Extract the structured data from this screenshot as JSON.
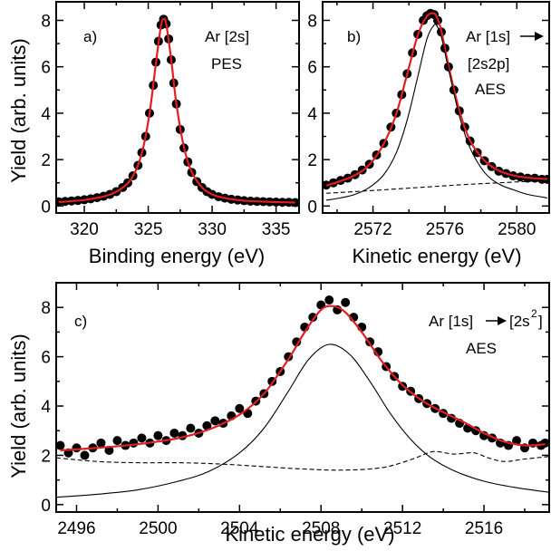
{
  "chart_data": [
    {
      "id": "a",
      "type": "scatter",
      "panel_label": "a)",
      "annotations": [
        "Ar [2s]",
        "PES"
      ],
      "xlabel": "Binding energy (eV)",
      "ylabel": "Yield (arb. units)",
      "xlim": [
        317.8,
        336.8
      ],
      "ylim": [
        -0.3,
        8.8
      ],
      "xticks": [
        320,
        325,
        330,
        335
      ],
      "yticks": [
        0,
        2,
        4,
        6,
        8
      ],
      "grid": false,
      "series": [
        {
          "kind": "points",
          "color": "#000000",
          "x": [
            318.0,
            318.5,
            319.0,
            319.5,
            320.0,
            320.5,
            321.0,
            321.5,
            322.0,
            322.5,
            323.0,
            323.4,
            323.8,
            324.2,
            324.5,
            324.8,
            325.1,
            325.4,
            325.6,
            325.8,
            326.0,
            326.2,
            326.4,
            326.6,
            326.8,
            327.0,
            327.2,
            327.5,
            327.8,
            328.1,
            328.4,
            328.8,
            329.2,
            329.6,
            330.0,
            330.5,
            331.0,
            331.5,
            332.0,
            332.5,
            333.0,
            333.5,
            334.0,
            334.5,
            335.0,
            335.5,
            336.0,
            336.5
          ],
          "y": [
            0.18,
            0.2,
            0.22,
            0.24,
            0.27,
            0.31,
            0.36,
            0.42,
            0.5,
            0.62,
            0.8,
            1.0,
            1.3,
            1.75,
            2.3,
            3.0,
            4.0,
            5.2,
            6.2,
            7.1,
            7.8,
            8.05,
            7.85,
            7.2,
            6.3,
            5.3,
            4.4,
            3.3,
            2.5,
            1.9,
            1.45,
            1.05,
            0.8,
            0.62,
            0.5,
            0.4,
            0.34,
            0.29,
            0.26,
            0.23,
            0.21,
            0.2,
            0.19,
            0.18,
            0.17,
            0.16,
            0.16,
            0.15
          ]
        },
        {
          "kind": "fit",
          "color": "#e02020",
          "x": [
            318.0,
            319.0,
            320.0,
            321.0,
            322.0,
            323.0,
            323.8,
            324.5,
            325.1,
            325.6,
            326.0,
            326.2,
            326.4,
            326.8,
            327.2,
            327.8,
            328.4,
            329.2,
            330.0,
            331.0,
            332.0,
            333.0,
            334.0,
            335.0,
            336.5
          ],
          "y": [
            0.17,
            0.21,
            0.26,
            0.35,
            0.49,
            0.79,
            1.28,
            2.28,
            3.98,
            6.15,
            7.78,
            8.05,
            7.86,
            6.3,
            4.42,
            2.52,
            1.47,
            0.81,
            0.5,
            0.34,
            0.26,
            0.21,
            0.19,
            0.17,
            0.15
          ]
        }
      ]
    },
    {
      "id": "b",
      "type": "scatter",
      "panel_label": "b)",
      "annotations": [
        "Ar [1s]",
        "[2s2p]",
        "AES"
      ],
      "xlabel": "Kinetic energy (eV)",
      "ylabel": "",
      "xlim": [
        2569.2,
        2581.8
      ],
      "ylim": [
        -0.3,
        8.8
      ],
      "xticks": [
        2572,
        2576,
        2580
      ],
      "yticks": [
        0,
        2,
        4,
        6,
        8
      ],
      "grid": false,
      "series": [
        {
          "kind": "points",
          "color": "#000000",
          "x": [
            2569.4,
            2569.8,
            2570.2,
            2570.6,
            2571.0,
            2571.4,
            2571.8,
            2572.2,
            2572.6,
            2573.0,
            2573.3,
            2573.6,
            2573.9,
            2574.2,
            2574.5,
            2574.8,
            2575.0,
            2575.2,
            2575.4,
            2575.6,
            2575.8,
            2576.0,
            2576.2,
            2576.5,
            2576.8,
            2577.1,
            2577.4,
            2577.8,
            2578.2,
            2578.6,
            2579.0,
            2579.4,
            2579.8,
            2580.2,
            2580.6,
            2581.0,
            2581.4,
            2581.7
          ],
          "y": [
            0.9,
            1.0,
            1.1,
            1.2,
            1.35,
            1.55,
            1.8,
            2.2,
            2.7,
            3.4,
            4.0,
            4.8,
            5.7,
            6.6,
            7.4,
            8.0,
            8.2,
            8.3,
            8.25,
            8.0,
            7.5,
            6.8,
            6.0,
            5.0,
            4.1,
            3.4,
            2.8,
            2.3,
            1.95,
            1.7,
            1.5,
            1.4,
            1.3,
            1.25,
            1.2,
            1.2,
            1.15,
            1.15
          ]
        },
        {
          "kind": "fit",
          "color": "#e02020",
          "x": [
            2569.4,
            2570.2,
            2571.0,
            2571.8,
            2572.6,
            2573.3,
            2573.9,
            2574.5,
            2575.0,
            2575.4,
            2575.6,
            2575.8,
            2576.2,
            2576.8,
            2577.4,
            2578.2,
            2579.0,
            2579.8,
            2580.6,
            2581.7
          ],
          "y": [
            0.88,
            1.08,
            1.33,
            1.78,
            2.68,
            3.98,
            5.68,
            7.38,
            8.18,
            8.3,
            8.05,
            7.55,
            6.05,
            4.12,
            2.82,
            1.96,
            1.52,
            1.32,
            1.22,
            1.16
          ]
        },
        {
          "kind": "component-solid",
          "color": "#000000",
          "x": [
            2569.4,
            2570.2,
            2571.0,
            2571.8,
            2572.6,
            2573.3,
            2573.9,
            2574.5,
            2575.0,
            2575.4,
            2575.6,
            2575.8,
            2576.2,
            2576.8,
            2577.4,
            2578.2,
            2579.0,
            2579.8,
            2580.6,
            2581.7
          ],
          "y": [
            0.25,
            0.35,
            0.5,
            0.8,
            1.35,
            2.3,
            3.7,
            5.6,
            7.2,
            7.8,
            7.7,
            7.3,
            5.9,
            3.9,
            2.5,
            1.45,
            0.95,
            0.7,
            0.5,
            0.35
          ]
        },
        {
          "kind": "component-dashed",
          "color": "#000000",
          "x": [
            2569.4,
            2571.0,
            2573.0,
            2575.0,
            2577.0,
            2579.0,
            2581.7
          ],
          "y": [
            0.55,
            0.62,
            0.72,
            0.82,
            0.92,
            1.0,
            1.1
          ]
        }
      ]
    },
    {
      "id": "c",
      "type": "scatter",
      "panel_label": "c)",
      "annotations": [
        "Ar [1s]",
        "[2s",
        "2",
        "]",
        "AES"
      ],
      "xlabel": "Kinetic energy (eV)",
      "ylabel": "Yield (arb. units)",
      "xlim": [
        2495.0,
        2519.2
      ],
      "ylim": [
        -0.3,
        9.0
      ],
      "xticks": [
        2496,
        2500,
        2504,
        2508,
        2512,
        2516
      ],
      "yticks": [
        0,
        2,
        4,
        6,
        8
      ],
      "grid": false,
      "series": [
        {
          "kind": "points",
          "color": "#000000",
          "x": [
            2495.2,
            2495.6,
            2496.0,
            2496.4,
            2496.8,
            2497.2,
            2497.6,
            2498.0,
            2498.4,
            2498.8,
            2499.2,
            2499.6,
            2500.0,
            2500.4,
            2500.8,
            2501.2,
            2501.6,
            2502.0,
            2502.4,
            2502.8,
            2503.2,
            2503.6,
            2504.0,
            2504.4,
            2504.8,
            2505.2,
            2505.6,
            2506.0,
            2506.4,
            2506.8,
            2507.2,
            2507.6,
            2508.0,
            2508.4,
            2508.8,
            2509.2,
            2509.6,
            2510.0,
            2510.4,
            2510.8,
            2511.2,
            2511.6,
            2512.0,
            2512.4,
            2512.8,
            2513.2,
            2513.6,
            2514.0,
            2514.4,
            2514.8,
            2515.2,
            2515.6,
            2516.0,
            2516.4,
            2516.8,
            2517.2,
            2517.6,
            2518.0,
            2518.4,
            2518.8,
            2519.0
          ],
          "y": [
            2.4,
            2.1,
            2.3,
            2.0,
            2.3,
            2.5,
            2.2,
            2.6,
            2.4,
            2.5,
            2.7,
            2.5,
            2.8,
            2.6,
            2.9,
            2.8,
            3.1,
            2.9,
            3.2,
            3.4,
            3.3,
            3.6,
            3.9,
            3.7,
            4.2,
            4.5,
            5.0,
            5.4,
            6.0,
            6.6,
            7.2,
            7.6,
            8.1,
            8.3,
            7.9,
            8.2,
            7.6,
            7.2,
            6.6,
            6.2,
            5.6,
            5.2,
            4.8,
            4.6,
            4.3,
            4.1,
            3.9,
            3.7,
            3.5,
            3.3,
            3.1,
            3.0,
            2.8,
            2.7,
            2.5,
            2.4,
            2.6,
            2.3,
            2.5,
            2.4,
            2.5
          ]
        },
        {
          "kind": "fit",
          "color": "#e02020",
          "x": [
            2495.2,
            2497.0,
            2499.0,
            2501.0,
            2502.5,
            2504.0,
            2505.2,
            2506.4,
            2507.2,
            2508.0,
            2508.6,
            2509.2,
            2510.0,
            2511.0,
            2512.0,
            2513.0,
            2514.0,
            2515.0,
            2516.0,
            2517.0,
            2518.0,
            2519.0
          ],
          "y": [
            2.2,
            2.3,
            2.45,
            2.7,
            3.05,
            3.65,
            4.5,
            5.9,
            7.0,
            7.9,
            8.05,
            7.8,
            7.0,
            5.8,
            4.85,
            4.2,
            3.75,
            3.35,
            2.9,
            2.55,
            2.4,
            2.45
          ]
        },
        {
          "kind": "component-solid",
          "color": "#000000",
          "x": [
            2495.0,
            2497.0,
            2499.0,
            2501.0,
            2502.5,
            2504.0,
            2505.2,
            2506.4,
            2507.4,
            2508.4,
            2509.4,
            2510.4,
            2511.4,
            2512.4,
            2513.4,
            2514.6,
            2516.0,
            2517.5,
            2519.2
          ],
          "y": [
            0.3,
            0.42,
            0.6,
            0.95,
            1.35,
            2.1,
            3.1,
            4.6,
            5.9,
            6.5,
            6.1,
            5.0,
            3.7,
            2.65,
            1.9,
            1.35,
            0.95,
            0.7,
            0.5
          ]
        },
        {
          "kind": "component-dashed",
          "color": "#000000",
          "x": [
            2495.0,
            2497.0,
            2499.0,
            2501.0,
            2503.0,
            2505.0,
            2507.0,
            2509.0,
            2511.0,
            2512.5,
            2513.5,
            2514.5,
            2515.5,
            2516.2,
            2517.0,
            2518.0,
            2519.2
          ],
          "y": [
            1.9,
            1.75,
            1.7,
            1.7,
            1.65,
            1.55,
            1.45,
            1.4,
            1.5,
            1.85,
            2.15,
            2.05,
            2.1,
            1.9,
            1.75,
            1.85,
            1.95
          ]
        }
      ]
    }
  ]
}
